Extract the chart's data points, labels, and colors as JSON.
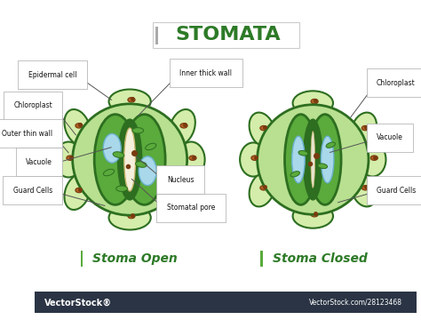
{
  "title": "STOMATA",
  "subtitle_left": "Stoma Open",
  "subtitle_right": "Stoma Closed",
  "bg_color": "#ffffff",
  "title_color": "#2d7a27",
  "subtitle_color": "#2d7a27",
  "dark_green": "#2d6e20",
  "mid_green": "#5aaa3c",
  "light_green": "#b8e090",
  "lighter_green": "#d4edaa",
  "blue_vacuole": "#a8d8ea",
  "brown_nucleus": "#b06020",
  "dark_brown": "#7a3a10",
  "vectorstock_bg": "#2a3444",
  "label_fontsize": 5.5,
  "title_fontsize": 16,
  "subtitle_fontsize": 10
}
